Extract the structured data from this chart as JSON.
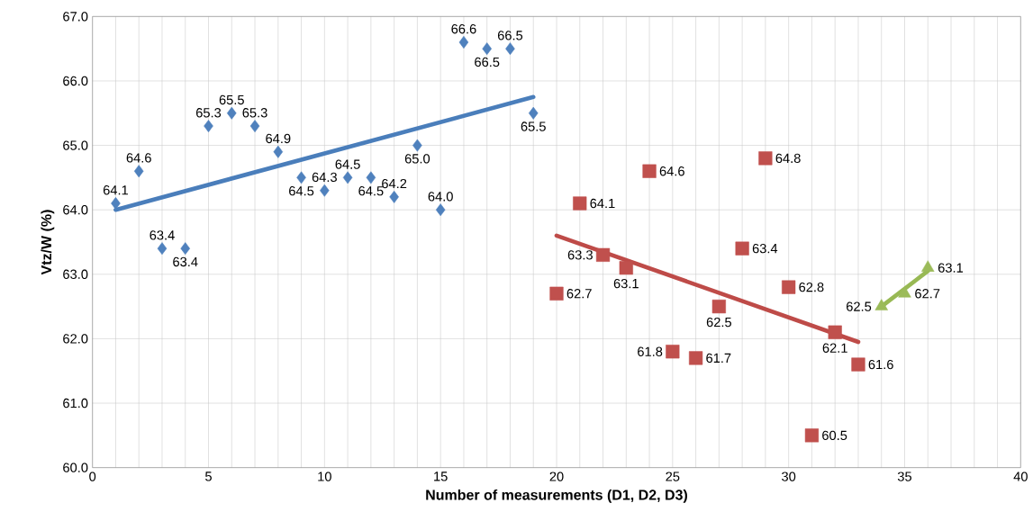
{
  "chart_data": {
    "type": "scatter",
    "xlabel": "Number of measurements (D1, D2, D3)",
    "ylabel": "Vtz/W (%)",
    "xlim": [
      0,
      40
    ],
    "xticks": [
      0,
      5,
      10,
      15,
      20,
      25,
      30,
      35,
      40
    ],
    "ylim": [
      60,
      67
    ],
    "yticks": [
      {
        "value": 60,
        "label": "60.0"
      },
      {
        "value": 61,
        "label": "61.0"
      },
      {
        "value": 62,
        "label": "62.0"
      },
      {
        "value": 63,
        "label": "63.0"
      },
      {
        "value": 64,
        "label": "64.0"
      },
      {
        "value": 65,
        "label": "65.0"
      },
      {
        "value": 66,
        "label": "66.0"
      },
      {
        "value": 67,
        "label": "67.0"
      }
    ],
    "grid": true,
    "series": [
      {
        "marker": "diamond",
        "color": "#4f81bd",
        "x": [
          1,
          2,
          3,
          4,
          5,
          6,
          7,
          8,
          9,
          10,
          11,
          12,
          13,
          14,
          15,
          16,
          17,
          18,
          19
        ],
        "values": [
          64.1,
          64.6,
          63.4,
          63.4,
          65.3,
          65.5,
          65.3,
          64.9,
          64.5,
          64.3,
          64.5,
          64.5,
          64.2,
          65.0,
          64.0,
          66.6,
          66.5,
          66.5,
          65.5
        ],
        "value_labels": [
          "64.1",
          "64.6",
          "63.4",
          "63.4",
          "65.3",
          "65.5",
          "65.3",
          "64.9",
          "64.5",
          "64.3",
          "64.5",
          "64.5",
          "64.2",
          "65.0",
          "64.0",
          "66.6",
          "66.5",
          "66.5",
          "65.5"
        ]
      },
      {
        "marker": "square",
        "color": "#c0504d",
        "x": [
          20,
          21,
          22,
          23,
          24,
          25,
          26,
          27,
          28,
          29,
          30,
          31,
          32,
          33
        ],
        "values": [
          62.7,
          64.1,
          63.3,
          63.1,
          64.6,
          61.8,
          61.7,
          62.5,
          63.4,
          64.8,
          62.8,
          60.5,
          62.1,
          61.6
        ],
        "value_labels": [
          "62.7",
          "64.1",
          "63.3",
          "63.1",
          "64.6",
          "61.8",
          "61.7",
          "62.5",
          "63.4",
          "64.8",
          "62.8",
          "60.5",
          "62.1",
          "61.6"
        ]
      },
      {
        "marker": "triangle",
        "color": "#9bbb59",
        "x": [
          34,
          35,
          36
        ],
        "values": [
          62.5,
          62.7,
          63.1
        ],
        "value_labels": [
          "62.5",
          "62.7",
          "63.1"
        ]
      },
      {
        "type": "line",
        "marker": "none",
        "color": "#4a7ebb",
        "x": [
          1,
          19
        ],
        "values": [
          64.0,
          65.75
        ]
      },
      {
        "type": "line",
        "marker": "none",
        "color": "#be4b48",
        "x": [
          20,
          33
        ],
        "values": [
          63.6,
          61.95
        ]
      },
      {
        "type": "line",
        "marker": "none",
        "color": "#98b954",
        "x": [
          34,
          36
        ],
        "values": [
          62.5,
          63.05
        ]
      }
    ]
  }
}
